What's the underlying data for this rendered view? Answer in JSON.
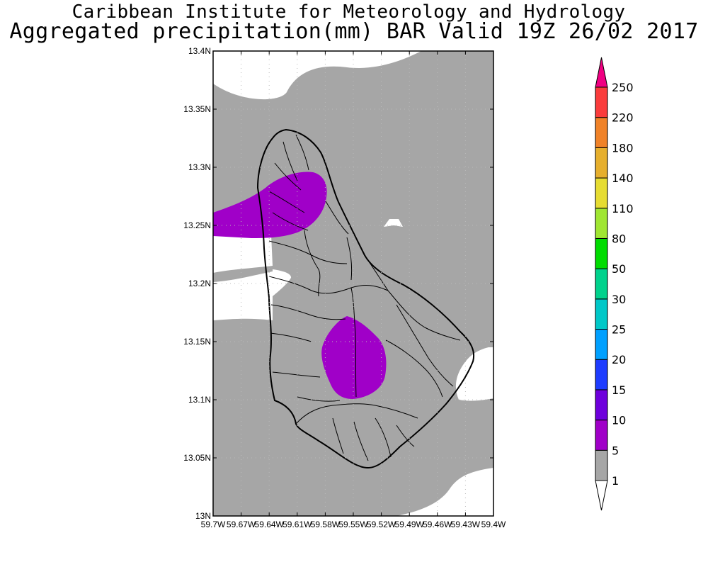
{
  "header": {
    "title": "Caribbean Institute for Meteorology and Hydrology",
    "subtitle": "Aggregated precipitation(mm) BAR Valid 19Z 26/02 2017"
  },
  "map": {
    "lat_ticks": [
      "13.4N",
      "13.35N",
      "13.3N",
      "13.25N",
      "13.2N",
      "13.15N",
      "13.1N",
      "13.05N",
      "13N"
    ],
    "lon_ticks": [
      "59.7W",
      "59.67W",
      "59.64W",
      "59.61W",
      "59.58W",
      "59.55W",
      "59.52W",
      "59.49W",
      "59.46W",
      "59.43W",
      "59.4W"
    ],
    "lat_range": [
      13.0,
      13.4
    ],
    "lon_range": [
      -59.7,
      -59.4
    ],
    "grid": "dotted",
    "region": "Barbados",
    "precip_areas": [
      {
        "name": "north-west area",
        "range_mm": "5-10"
      },
      {
        "name": "central area",
        "range_mm": "5-10"
      },
      {
        "name": "surrounding area",
        "range_mm": "1-5"
      }
    ]
  },
  "colorbar": {
    "levels": [
      "1",
      "5",
      "10",
      "15",
      "20",
      "25",
      "30",
      "50",
      "80",
      "110",
      "140",
      "180",
      "220",
      "250"
    ],
    "colors": [
      "#a6a6a6",
      "#a000c8",
      "#6e00dc",
      "#1e3cff",
      "#00a0ff",
      "#00c8c8",
      "#00d28c",
      "#00dc00",
      "#a0e632",
      "#e6dc32",
      "#e6af2d",
      "#f08228",
      "#fa3c3c",
      "#f00082"
    ],
    "below_color": "#ffffff",
    "above_color": "#f00082"
  },
  "colors": {
    "gray": "#a6a6a6",
    "purple": "#a000c8",
    "outline": "#000000"
  }
}
